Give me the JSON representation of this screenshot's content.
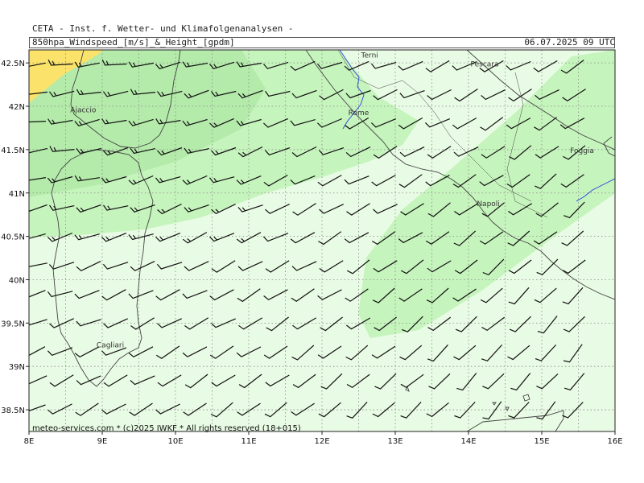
{
  "header": {
    "institute": "CETA - Inst. f. Wetter- und Klimafolgenanalysen -",
    "product": "850hpa_Windspeed_[m/s]_&_Height_[gpdm]",
    "valid_time": "06.07.2025 09 UTC"
  },
  "footer": "meteo-services.com * (c)2025 IWKF * All rights reserved (18+015)",
  "map": {
    "lon_range": [
      8,
      16
    ],
    "lat_range": [
      38.25,
      42.65
    ],
    "lon_ticks": [
      {
        "value": 8,
        "label": "8E"
      },
      {
        "value": 9,
        "label": "9E"
      },
      {
        "value": 10,
        "label": "10E"
      },
      {
        "value": 11,
        "label": "11E"
      },
      {
        "value": 12,
        "label": "12E"
      },
      {
        "value": 13,
        "label": "13E"
      },
      {
        "value": 14,
        "label": "14E"
      },
      {
        "value": 15,
        "label": "15E"
      },
      {
        "value": 16,
        "label": "16E"
      }
    ],
    "lat_ticks": [
      {
        "value": 42.5,
        "label": "42.5N"
      },
      {
        "value": 42,
        "label": "42N"
      },
      {
        "value": 41.5,
        "label": "41.5N"
      },
      {
        "value": 41,
        "label": "41N"
      },
      {
        "value": 40.5,
        "label": "40.5N"
      },
      {
        "value": 40,
        "label": "40N"
      },
      {
        "value": 39.5,
        "label": "39.5N"
      },
      {
        "value": 39,
        "label": "39N"
      },
      {
        "value": 38.5,
        "label": "38.5N"
      }
    ],
    "grid": true,
    "colors": {
      "weak_wind": "#e8fbe4",
      "moderate_wind": "#c6f4bd",
      "stronger_wind": "#a8e29c",
      "strong_wind": "#fbe36b",
      "coast": "#444444",
      "rivers": "#2244dd",
      "barbs": "#111111",
      "grid": "#888888"
    },
    "cities": [
      {
        "name": "Ajaccio",
        "lon": 8.74,
        "lat": 41.93
      },
      {
        "name": "Terni",
        "lon": 12.65,
        "lat": 42.56
      },
      {
        "name": "Pescara",
        "lon": 14.22,
        "lat": 42.46
      },
      {
        "name": "Rome",
        "lon": 12.5,
        "lat": 41.9
      },
      {
        "name": "Foggia",
        "lon": 15.55,
        "lat": 41.46
      },
      {
        "name": "Napoli",
        "lon": 14.27,
        "lat": 40.85
      },
      {
        "name": "Cagliari",
        "lon": 9.11,
        "lat": 39.22
      }
    ],
    "wind_barbs_note": "wind barbs on a regular grid, mostly W-SW winds"
  }
}
